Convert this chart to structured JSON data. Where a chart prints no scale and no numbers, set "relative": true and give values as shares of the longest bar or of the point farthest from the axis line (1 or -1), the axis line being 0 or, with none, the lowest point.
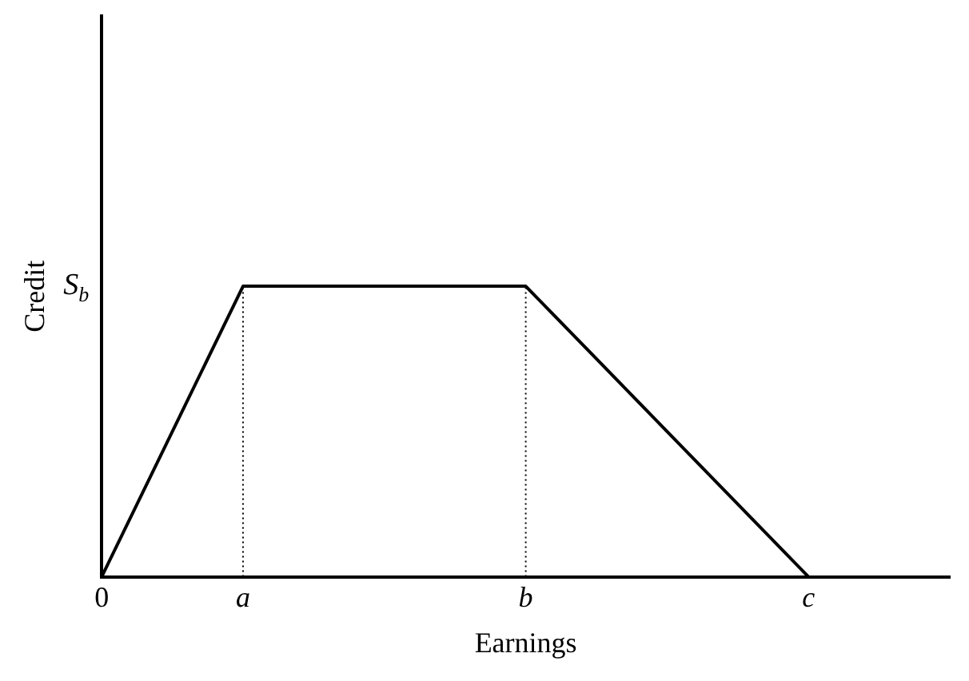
{
  "chart_data": {
    "type": "line",
    "xlabel": "Earnings",
    "ylabel": "Credit",
    "relative": true,
    "categories": [
      "0",
      "a",
      null,
      "b",
      null,
      "c",
      null
    ],
    "values": [
      0,
      1,
      1,
      1,
      0.5,
      0,
      null
    ],
    "color": "#000000",
    "annotations": [
      "S$_{b}$"
    ],
    "ref_lines": [
      {
        "axis": "x",
        "value": "a",
        "color": "#000000",
        "line_style": "dotted"
      },
      {
        "axis": "x",
        "value": "b",
        "color": "#000000",
        "line_style": "dotted"
      }
    ],
    "grid": false,
    "legend": false,
    "marker": "none",
    "line_style": "solid"
  }
}
